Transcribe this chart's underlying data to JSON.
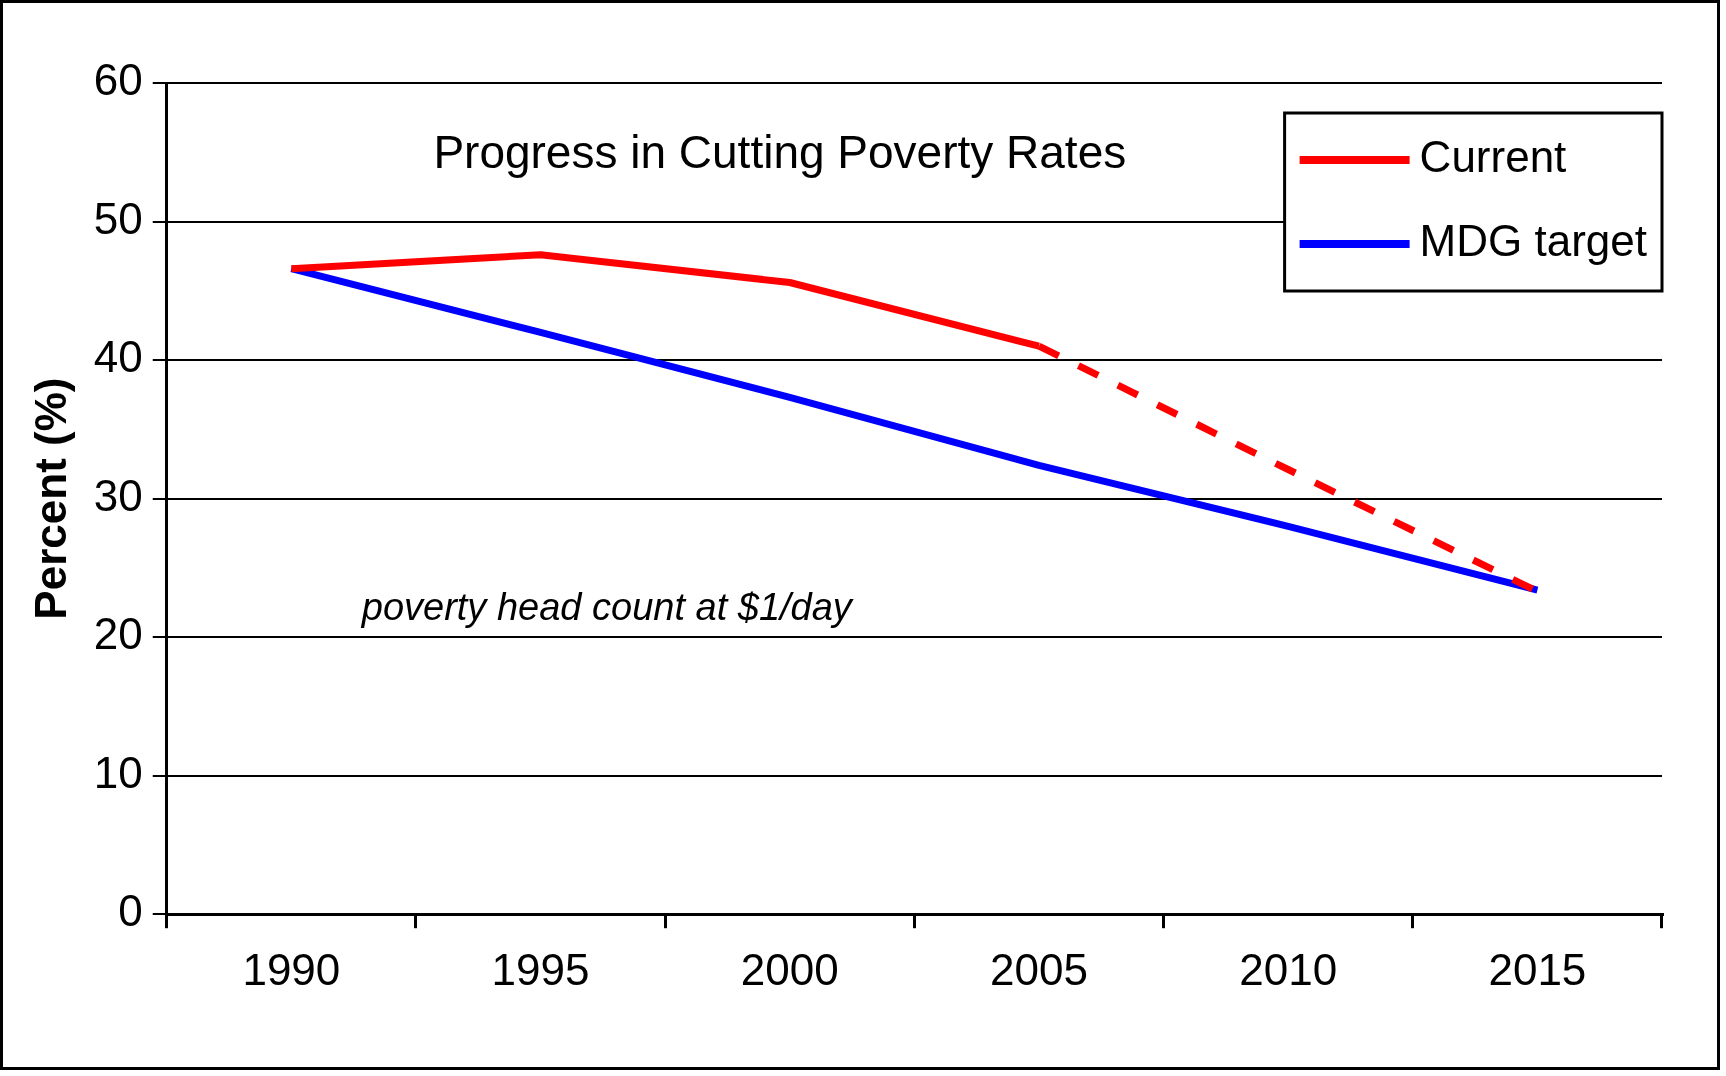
{
  "chart_data": {
    "type": "line",
    "title": "Progress in Cutting Poverty Rates",
    "ylabel": "Percent (%)",
    "categories": [
      "1990",
      "1995",
      "2000",
      "2005",
      "2010",
      "2015"
    ],
    "series": [
      {
        "name": "Current",
        "color": "#ff0000",
        "values": [
          46.6,
          47.6,
          45.6,
          41.0,
          null,
          null
        ]
      },
      {
        "color": "#ff0000",
        "line_style": "dashed",
        "values": [
          null,
          null,
          null,
          41.0,
          32.1,
          23.3
        ]
      },
      {
        "name": "MDG target",
        "color": "#0000ff",
        "values": [
          46.6,
          42.0,
          37.3,
          32.4,
          28.0,
          23.4
        ]
      }
    ],
    "ylim": [
      0,
      60
    ],
    "yticks": [
      0,
      10,
      20,
      30,
      40,
      50,
      60
    ],
    "grid": "y",
    "legend": "top right",
    "marker": "none",
    "annotations": [
      "poverty head count at $1/day"
    ]
  }
}
